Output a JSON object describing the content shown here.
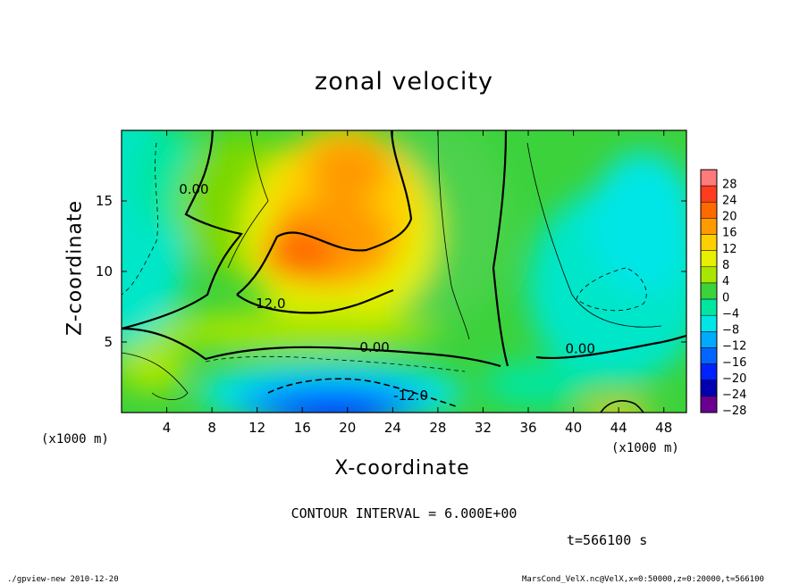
{
  "chart_data": {
    "type": "heatmap",
    "title": "zonal velocity",
    "xlabel": "X-coordinate",
    "ylabel": "Z-coordinate",
    "x_unit": "(x1000 m)",
    "y_unit": "(x1000 m)",
    "xlim": [
      0,
      50
    ],
    "ylim": [
      0,
      20
    ],
    "x_ticks": [
      4,
      8,
      12,
      16,
      20,
      24,
      28,
      32,
      36,
      40,
      44,
      48
    ],
    "y_ticks": [
      5,
      10,
      15
    ],
    "colorbar": {
      "levels": [
        28,
        24,
        20,
        16,
        12,
        8,
        4,
        0,
        -4,
        -8,
        -12,
        -16,
        -20,
        -24,
        -28
      ],
      "colors": [
        "#ff7a7a",
        "#ff3c1e",
        "#ff6a00",
        "#ff9a00",
        "#ffd000",
        "#e6f000",
        "#a8e600",
        "#3cd23c",
        "#00e6a0",
        "#00e6e6",
        "#00aaff",
        "#0066ff",
        "#0022ff",
        "#0000b0",
        "#6a0090"
      ]
    },
    "contour_labels": [
      {
        "text": "0.00",
        "x": 6.4,
        "y": 15.5
      },
      {
        "text": "12.0",
        "x": 13.2,
        "y": 7.4
      },
      {
        "text": "0.00",
        "x": 22.4,
        "y": 4.3
      },
      {
        "text": "0.00",
        "x": 40.6,
        "y": 4.2
      },
      {
        "text": "-12.0",
        "x": 25.6,
        "y": 0.9
      }
    ],
    "contour_interval": "CONTOUR INTERVAL = 6.000E+00",
    "time": "t=566100 s"
  },
  "footer": {
    "left": "./gpview-new  2010-12-20",
    "right": "MarsCond_VelX.nc@VelX,x=0:50000,z=0:20000,t=566100"
  }
}
